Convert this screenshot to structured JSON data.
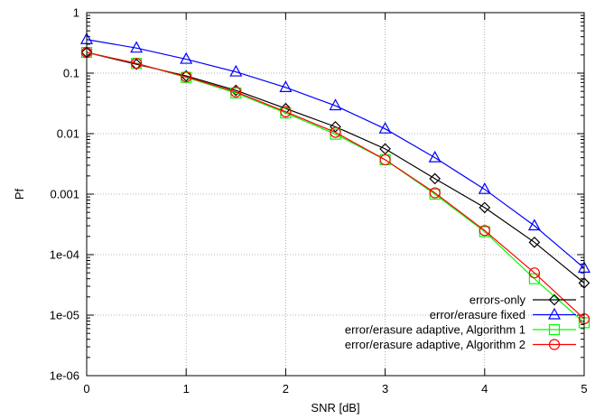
{
  "chart_data": {
    "type": "line",
    "title": "",
    "xlabel": "SNR [dB]",
    "ylabel": "Pf",
    "xlim": [
      0,
      5
    ],
    "ylim": [
      1e-06,
      1
    ],
    "yscale": "log",
    "grid": true,
    "legend_position": "bottom-right",
    "x_ticks": [
      {
        "value": 0,
        "label": "0"
      },
      {
        "value": 1,
        "label": "1"
      },
      {
        "value": 2,
        "label": "2"
      },
      {
        "value": 3,
        "label": "3"
      },
      {
        "value": 4,
        "label": "4"
      },
      {
        "value": 5,
        "label": "5"
      }
    ],
    "y_ticks": [
      {
        "value": 1,
        "label": "1"
      },
      {
        "value": 0.1,
        "label": "0.1"
      },
      {
        "value": 0.01,
        "label": "0.01"
      },
      {
        "value": 0.001,
        "label": "0.001"
      },
      {
        "value": 0.0001,
        "label": "1e-04"
      },
      {
        "value": 1e-05,
        "label": "1e-05"
      },
      {
        "value": 1e-06,
        "label": "1e-06"
      }
    ],
    "x": [
      0,
      0.5,
      1,
      1.5,
      2,
      2.5,
      3,
      3.5,
      4,
      4.5,
      5
    ],
    "series": [
      {
        "name": "errors-only",
        "color": "#000000",
        "marker": "diamond",
        "values": [
          0.22,
          0.14,
          0.09,
          0.052,
          0.026,
          0.013,
          0.0056,
          0.0018,
          0.0006,
          0.00016,
          3.4e-05
        ]
      },
      {
        "name": "error/erasure fixed",
        "color": "#0000ff",
        "marker": "triangle",
        "values": [
          0.36,
          0.26,
          0.17,
          0.105,
          0.058,
          0.029,
          0.012,
          0.004,
          0.0012,
          0.0003,
          6e-05
        ]
      },
      {
        "name": "error/erasure adaptive, Algorithm 1",
        "color": "#00ff00",
        "marker": "square",
        "values": [
          0.22,
          0.145,
          0.085,
          0.047,
          0.022,
          0.0098,
          0.0037,
          0.001,
          0.00024,
          4e-05,
          7.5e-06
        ]
      },
      {
        "name": "error/erasure adaptive, Algorithm 2",
        "color": "#ff0000",
        "marker": "circle",
        "values": [
          0.22,
          0.145,
          0.087,
          0.049,
          0.023,
          0.0105,
          0.0037,
          0.00105,
          0.00025,
          5e-05,
          8.7e-06
        ]
      }
    ]
  }
}
